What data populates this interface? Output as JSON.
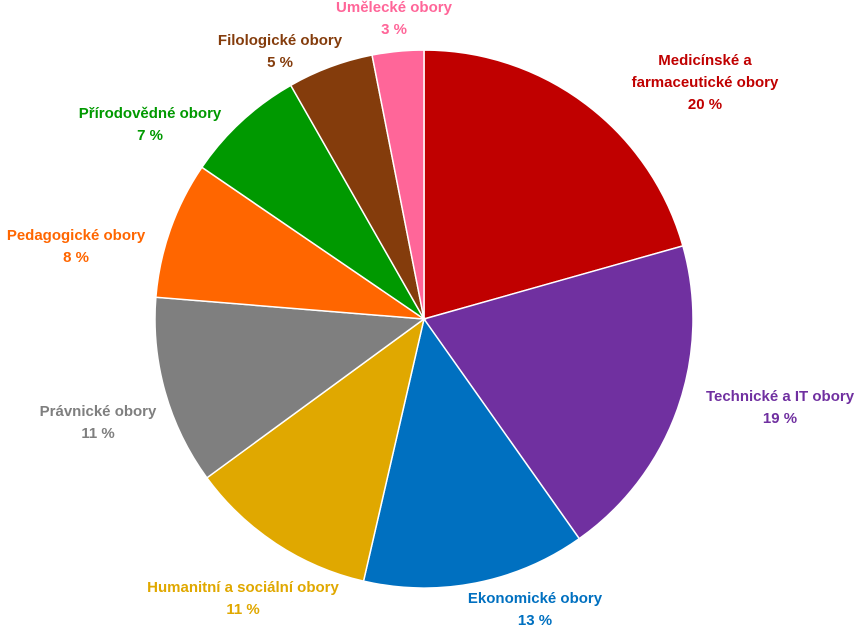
{
  "chart_data": {
    "type": "pie",
    "title": "",
    "slices": [
      {
        "label": [
          "Medicínské a",
          "farmaceutické obory"
        ],
        "value": 20,
        "value_label": "20 %",
        "color": "#C00000"
      },
      {
        "label": [
          "Technické a IT obory"
        ],
        "value": 19,
        "value_label": "19 %",
        "color": "#7030A0"
      },
      {
        "label": [
          "Ekonomické obory"
        ],
        "value": 13,
        "value_label": "13 %",
        "color": "#0070C0"
      },
      {
        "label": [
          "Humanitní a sociální obory"
        ],
        "value": 11,
        "value_label": "11 %",
        "color": "#E0A800"
      },
      {
        "label": [
          "Právnické obory"
        ],
        "value": 11,
        "value_label": "11 %",
        "color": "#7F7F7F"
      },
      {
        "label": [
          "Pedagogické obory"
        ],
        "value": 8,
        "value_label": "8 %",
        "color": "#FF6600"
      },
      {
        "label": [
          "Přírodovědné obory"
        ],
        "value": 7,
        "value_label": "7 %",
        "color": "#009900"
      },
      {
        "label": [
          "Filologické obory"
        ],
        "value": 5,
        "value_label": "5 %",
        "color": "#843C0C"
      },
      {
        "label": [
          "Umělecké obory"
        ],
        "value": 3,
        "value_label": "3 %",
        "color": "#FF6699"
      }
    ]
  }
}
